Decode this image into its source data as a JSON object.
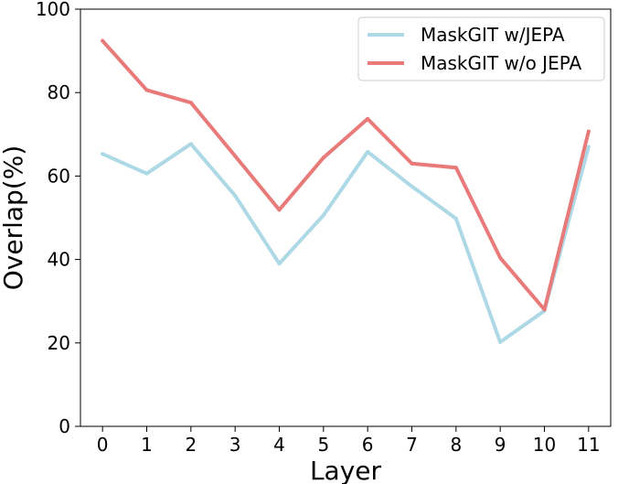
{
  "chart_data": {
    "type": "line",
    "title": "",
    "xlabel": "Layer",
    "ylabel": "Overlap(%)",
    "xlim": [
      -0.5,
      11.5
    ],
    "ylim": [
      0,
      100
    ],
    "x_ticks": [
      0,
      1,
      2,
      3,
      4,
      5,
      6,
      7,
      8,
      9,
      10,
      11
    ],
    "y_ticks": [
      0,
      20,
      40,
      60,
      80,
      100
    ],
    "grid": false,
    "legend_position": "top-right",
    "series": [
      {
        "name": "MaskGIT w/JEPA",
        "color": "#add8e6",
        "x": [
          0,
          1,
          2,
          3,
          4,
          5,
          6,
          7,
          8,
          9,
          10,
          11
        ],
        "values": [
          65.3,
          60.6,
          67.7,
          55.3,
          39.0,
          50.6,
          65.8,
          57.5,
          49.8,
          20.2,
          27.7,
          67.0
        ]
      },
      {
        "name": "MaskGIT w/o JEPA",
        "color": "#e97a7a",
        "x": [
          0,
          1,
          2,
          3,
          4,
          5,
          6,
          7,
          8,
          9,
          10,
          11
        ],
        "values": [
          92.4,
          80.6,
          77.6,
          64.8,
          51.9,
          64.4,
          73.7,
          63.0,
          62.0,
          40.4,
          28.0,
          70.7
        ]
      }
    ]
  }
}
